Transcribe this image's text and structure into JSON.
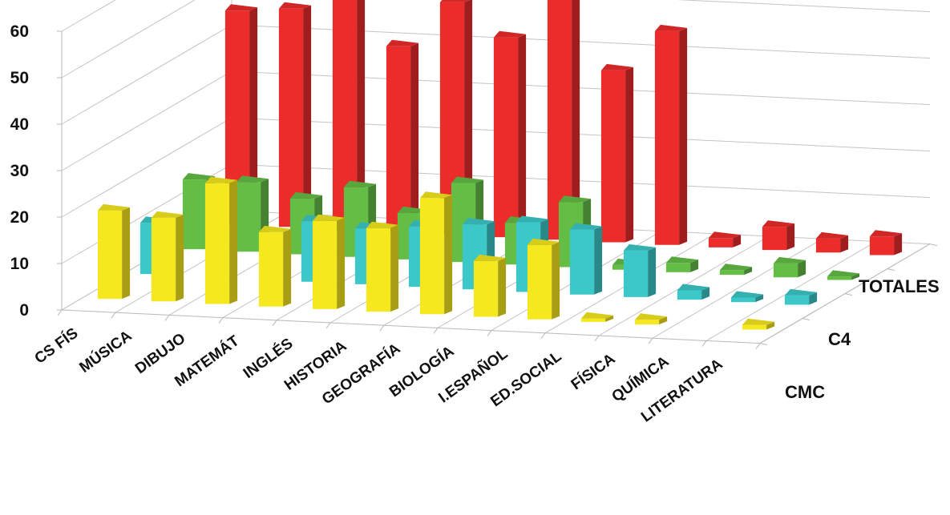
{
  "chart_data": {
    "type": "bar",
    "variant": "3d-column",
    "categories": [
      "CS FÍS",
      "MÚSICA",
      "DIBUJO",
      "MATEMÁT",
      "INGLÉS",
      "HISTORIA",
      "GEOGRAFÍA",
      "BIOLOGÍA",
      "I.ESPAÑOL",
      "ED.SOCIAL",
      "FÍSICA",
      "QUÍMICA",
      "LITERATURA"
    ],
    "series": [
      {
        "name": "CMC",
        "color": "#f5e81e",
        "values": [
          19,
          18,
          26,
          16,
          19,
          18,
          25,
          12,
          16,
          0,
          1,
          null,
          1
        ]
      },
      {
        "name": "C4",
        "color": "#3cc8c8",
        "values": [
          11,
          null,
          null,
          13,
          12,
          13,
          14,
          15,
          14,
          10,
          2,
          1,
          2
        ]
      },
      {
        "name": "TOTALES",
        "color": "#ec2b2b",
        "values": [
          46,
          47,
          59,
          40,
          50,
          43,
          53,
          37,
          46,
          2,
          5,
          3,
          4
        ]
      }
    ],
    "c4_back_row": {
      "name": "C4",
      "color": "#64be46",
      "values": [
        15,
        15,
        12,
        15,
        10,
        17,
        9,
        14,
        1,
        2,
        1,
        3,
        0
      ]
    },
    "yticks": [
      0,
      10,
      20,
      30,
      40,
      50,
      60
    ],
    "ylim": [
      0,
      60
    ],
    "series_axis_labels": [
      "CMC",
      "C4",
      "TOTALES"
    ],
    "grid": true,
    "legend": "none"
  }
}
